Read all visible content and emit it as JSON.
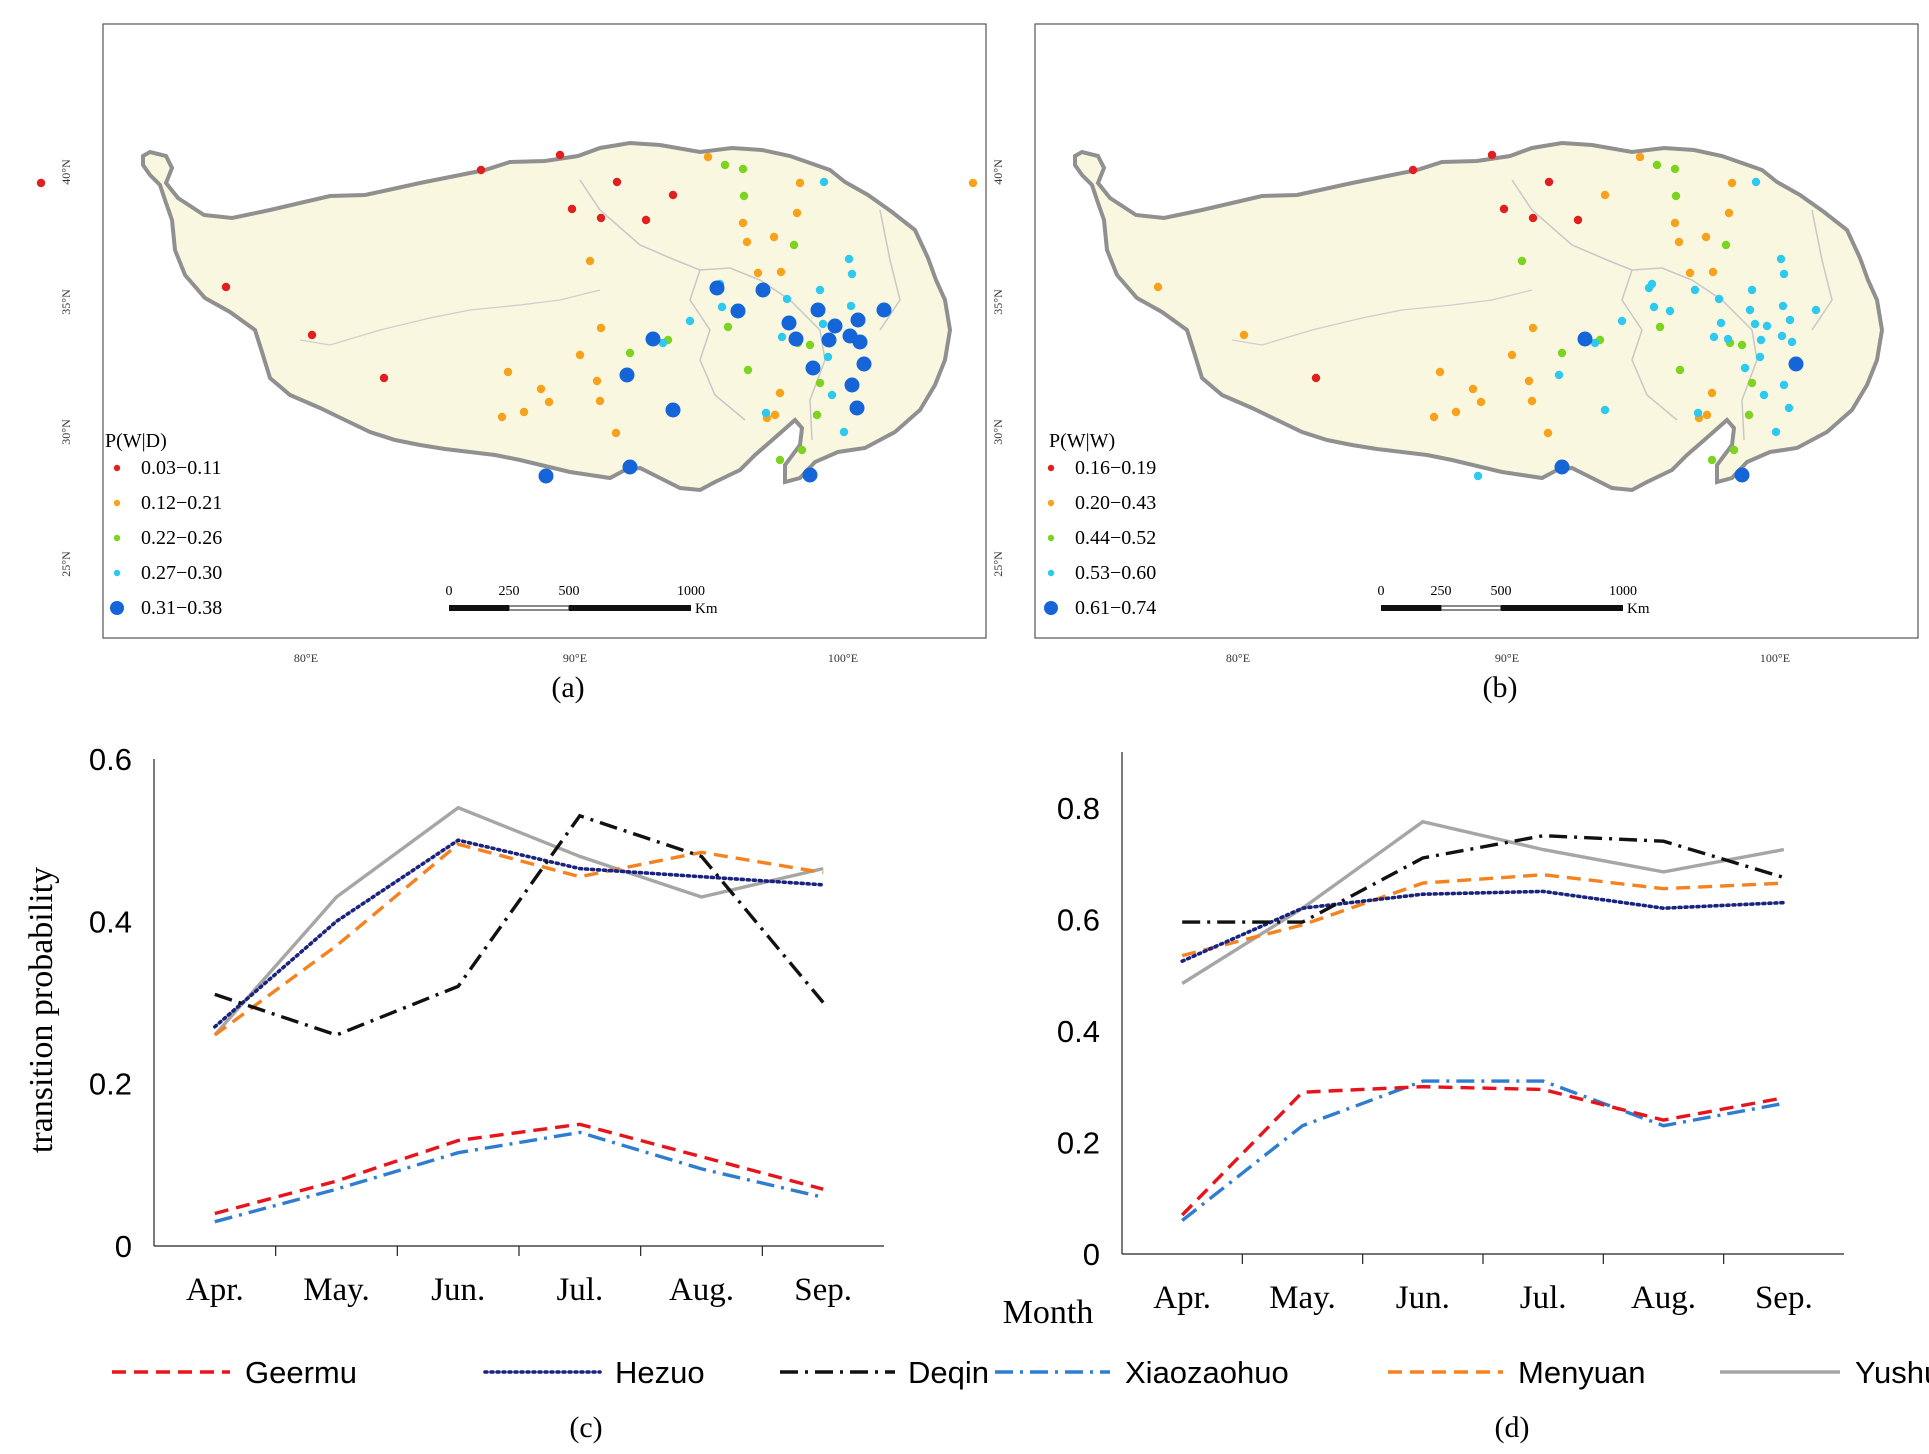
{
  "panels": {
    "a": {
      "caption": "(a)",
      "legend_title": "P(W|D)",
      "legend": [
        {
          "label": "0.03−0.11",
          "color": "#e02020",
          "size": "small"
        },
        {
          "label": "0.12−0.21",
          "color": "#f7a21b",
          "size": "small"
        },
        {
          "label": "0.22−0.26",
          "color": "#7ed321",
          "size": "small"
        },
        {
          "label": "0.27−0.30",
          "color": "#2ec9ef",
          "size": "small"
        },
        {
          "label": "0.31−0.38",
          "color": "#1565d8",
          "size": "large"
        }
      ],
      "lat_labels": [
        "40°N",
        "35°N",
        "30°N",
        "25°N"
      ],
      "lon_labels": [
        "80°E",
        "90°E",
        "100°E"
      ],
      "scale_ticks": [
        "0",
        "250",
        "500",
        "1000"
      ],
      "scale_unit": "Km"
    },
    "b": {
      "caption": "(b)",
      "legend_title": "P(W|W)",
      "legend": [
        {
          "label": "0.16−0.19",
          "color": "#e02020",
          "size": "small"
        },
        {
          "label": "0.20−0.43",
          "color": "#f7a21b",
          "size": "small"
        },
        {
          "label": "0.44−0.52",
          "color": "#7ed321",
          "size": "small"
        },
        {
          "label": "0.53−0.60",
          "color": "#2ec9ef",
          "size": "small"
        },
        {
          "label": "0.61−0.74",
          "color": "#1565d8",
          "size": "large"
        }
      ],
      "lat_labels": [
        "40°N",
        "35°N",
        "30°N",
        "25°N"
      ],
      "lon_labels": [
        "80°E",
        "90°E",
        "100°E"
      ],
      "scale_ticks": [
        "0",
        "250",
        "500",
        "1000"
      ],
      "scale_unit": "Km"
    },
    "c": {
      "caption": "(c)"
    },
    "d": {
      "caption": "(d)"
    }
  },
  "chart_data": [
    {
      "id": "c",
      "type": "line",
      "title": "",
      "xlabel": "",
      "ylabel": "transition probability",
      "categories": [
        "Apr.",
        "May.",
        "Jun.",
        "Jul.",
        "Aug.",
        "Sep."
      ],
      "ylim": [
        0,
        0.6
      ],
      "yticks": [
        0,
        0.2,
        0.4,
        0.6
      ],
      "ytick_labels": [
        "0",
        "0.2",
        "0.4",
        "0.6"
      ],
      "series": [
        {
          "name": "Geermu",
          "values": [
            0.04,
            0.08,
            0.13,
            0.15,
            0.11,
            0.07
          ]
        },
        {
          "name": "Hezuo",
          "values": [
            0.27,
            0.4,
            0.5,
            0.465,
            0.455,
            0.445
          ]
        },
        {
          "name": "Deqin",
          "values": [
            0.31,
            0.26,
            0.32,
            0.53,
            0.48,
            0.3
          ]
        },
        {
          "name": "Xiaozaohuo",
          "values": [
            0.03,
            0.07,
            0.115,
            0.14,
            0.095,
            0.06
          ]
        },
        {
          "name": "Menyuan",
          "values": [
            0.26,
            0.37,
            0.495,
            0.455,
            0.485,
            0.46
          ]
        },
        {
          "name": "Yushu",
          "values": [
            0.26,
            0.43,
            0.54,
            0.48,
            0.43,
            0.465
          ]
        }
      ]
    },
    {
      "id": "d",
      "type": "line",
      "title": "",
      "xlabel": "Month",
      "ylabel": "",
      "categories": [
        "Apr.",
        "May.",
        "Jun.",
        "Jul.",
        "Aug.",
        "Sep."
      ],
      "ylim": [
        0,
        0.9
      ],
      "yticks": [
        0,
        0.2,
        0.4,
        0.6,
        0.8
      ],
      "ytick_labels": [
        "0",
        "0.2",
        "0.4",
        "0.6",
        "0.8"
      ],
      "series": [
        {
          "name": "Geermu",
          "values": [
            0.07,
            0.29,
            0.3,
            0.295,
            0.24,
            0.28
          ]
        },
        {
          "name": "Hezuo",
          "values": [
            0.525,
            0.62,
            0.645,
            0.65,
            0.62,
            0.63
          ]
        },
        {
          "name": "Deqin",
          "values": [
            0.595,
            0.595,
            0.71,
            0.75,
            0.74,
            0.675
          ]
        },
        {
          "name": "Xiaozaohuo",
          "values": [
            0.06,
            0.23,
            0.31,
            0.31,
            0.23,
            0.27
          ]
        },
        {
          "name": "Menyuan",
          "values": [
            0.535,
            0.59,
            0.665,
            0.68,
            0.655,
            0.665
          ]
        },
        {
          "name": "Yushu",
          "values": [
            0.485,
            0.62,
            0.775,
            0.725,
            0.685,
            0.725
          ]
        }
      ]
    }
  ],
  "legend": [
    {
      "name": "Geermu",
      "color": "#e8141c",
      "dash": "dash"
    },
    {
      "name": "Hezuo",
      "color": "#1a237e",
      "dash": "dot"
    },
    {
      "name": "Deqin",
      "color": "#111111",
      "dash": "dashdot"
    },
    {
      "name": "Xiaozaohuo",
      "color": "#2f7dd1",
      "dash": "dashdot"
    },
    {
      "name": "Menyuan",
      "color": "#f58220",
      "dash": "dash"
    },
    {
      "name": "Yushu",
      "color": "#a6a6a6",
      "dash": "solid"
    }
  ]
}
